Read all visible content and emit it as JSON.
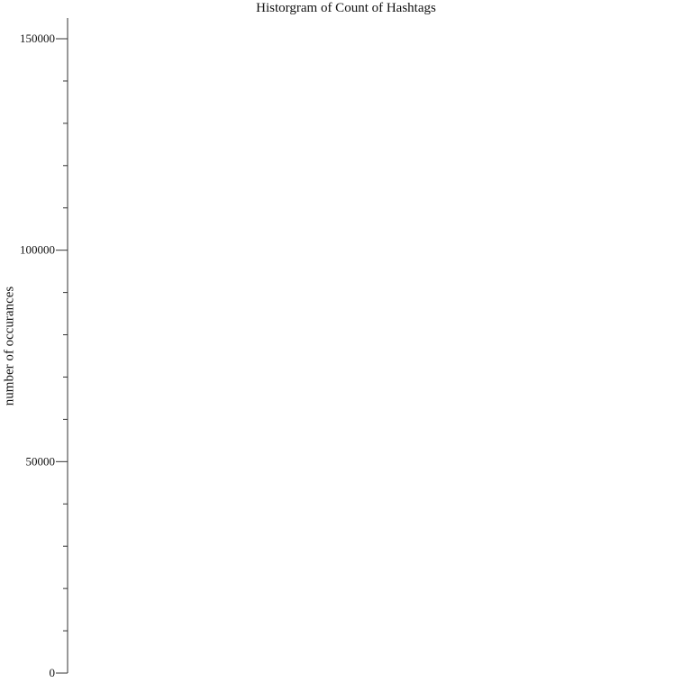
{
  "chart_data": {
    "type": "bar",
    "title": "Historgram of Count of Hashtags",
    "xlabel": "",
    "ylabel": "number of occurances",
    "ylim": [
      0,
      155000
    ],
    "major_ticks": [
      0,
      50000,
      100000,
      150000
    ],
    "minor_step": 10000,
    "categories": [],
    "values": [],
    "grid": false,
    "axis_color": "#333333"
  }
}
